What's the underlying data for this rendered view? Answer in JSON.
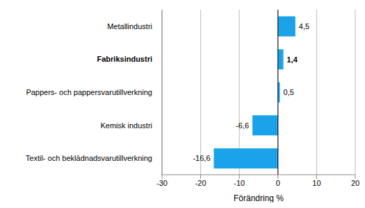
{
  "chart_data": {
    "type": "bar",
    "orientation": "horizontal",
    "categories": [
      "Metallindustri",
      "Fabriksindustri",
      "Pappers- och pappersvarutillverkning",
      "Kemisk industri",
      "Textil- och beklädnadsvarutillverkning"
    ],
    "values": [
      4.5,
      1.4,
      0.5,
      -6.6,
      -16.6
    ],
    "value_labels": [
      "4,5",
      "1,4",
      "0,5",
      "-6,6",
      "-16,6"
    ],
    "color": "#1aa3e8",
    "xlabel": "Förändring %",
    "xlim": [
      -30,
      20
    ],
    "xticks": [
      -30,
      -20,
      -10,
      0,
      10,
      20
    ],
    "grid": true,
    "data_labels": true
  }
}
